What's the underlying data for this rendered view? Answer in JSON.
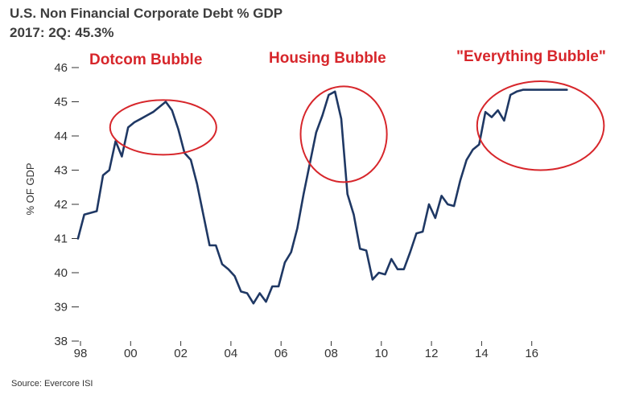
{
  "colors": {
    "line": "#1f3864",
    "annotation": "#d7262b",
    "axis": "#333333",
    "grid": "#bbbbbb"
  },
  "chart_data": {
    "type": "line",
    "title": "U.S. Non Financial Corporate Debt % GDP",
    "subtitle": "2017: 2Q: 45.3%",
    "xlabel": "",
    "ylabel": "% OF GDP",
    "source": "Source: Evercore ISI",
    "xlim": [
      1998,
      2018
    ],
    "ylim": [
      38,
      46
    ],
    "x_ticks": [
      1998,
      2000,
      2002,
      2004,
      2006,
      2008,
      2010,
      2012,
      2014,
      2016
    ],
    "x_tick_labels": [
      "98",
      "00",
      "02",
      "04",
      "06",
      "08",
      "10",
      "12",
      "14",
      "16"
    ],
    "y_ticks": [
      38,
      39,
      40,
      41,
      42,
      43,
      44,
      45,
      46
    ],
    "y_tick_labels": [
      "38",
      "39",
      "40",
      "41",
      "42",
      "43",
      "44",
      "45",
      "46"
    ],
    "series": [
      {
        "name": "U.S. Non Financial Corporate Debt % GDP",
        "x": [
          1997.9,
          1998.15,
          1998.4,
          1998.65,
          1998.9,
          1999.15,
          1999.4,
          1999.65,
          1999.9,
          2000.15,
          2000.4,
          2000.65,
          2000.9,
          2001.15,
          2001.4,
          2001.65,
          2001.9,
          2002.15,
          2002.4,
          2002.65,
          2002.9,
          2003.15,
          2003.4,
          2003.65,
          2003.9,
          2004.15,
          2004.4,
          2004.65,
          2004.9,
          2005.15,
          2005.4,
          2005.65,
          2005.9,
          2006.15,
          2006.4,
          2006.65,
          2006.9,
          2007.15,
          2007.4,
          2007.65,
          2007.9,
          2008.15,
          2008.4,
          2008.65,
          2008.9,
          2009.15,
          2009.4,
          2009.65,
          2009.9,
          2010.15,
          2010.4,
          2010.65,
          2010.9,
          2011.15,
          2011.4,
          2011.65,
          2011.9,
          2012.15,
          2012.4,
          2012.65,
          2012.9,
          2013.15,
          2013.4,
          2013.65,
          2013.9,
          2014.15,
          2014.4,
          2014.65,
          2014.9,
          2015.15,
          2015.4,
          2015.65,
          2015.9,
          2016.15,
          2016.4,
          2016.65,
          2016.9,
          2017.15,
          2017.4
        ],
        "values": [
          41.0,
          41.7,
          41.75,
          41.8,
          42.85,
          43.0,
          43.85,
          43.4,
          44.25,
          44.4,
          44.5,
          44.6,
          44.7,
          44.85,
          45.0,
          44.75,
          44.2,
          43.5,
          43.3,
          42.6,
          41.7,
          40.8,
          40.8,
          40.25,
          40.1,
          39.9,
          39.45,
          39.4,
          39.1,
          39.4,
          39.15,
          39.6,
          39.6,
          40.3,
          40.6,
          41.3,
          42.3,
          43.2,
          44.1,
          44.6,
          45.2,
          45.3,
          44.5,
          42.3,
          41.7,
          40.7,
          40.65,
          39.8,
          40.0,
          39.95,
          40.4,
          40.1,
          40.1,
          40.6,
          41.15,
          41.2,
          42.0,
          41.6,
          42.25,
          42.0,
          41.95,
          42.7,
          43.3,
          43.6,
          43.75,
          44.7,
          44.55,
          44.75,
          44.45,
          45.2,
          45.3,
          45.35,
          45.35,
          45.35,
          45.35,
          45.35,
          45.35,
          45.35,
          45.35
        ]
      }
    ],
    "annotations": [
      "Dotcom Bubble",
      "Housing Bubble",
      "\"Everything Bubble\""
    ],
    "highlight_circles": [
      {
        "label": "Dotcom Bubble",
        "center": [
          2001.3,
          44.25
        ],
        "rx_years": 2.12,
        "ry_units": 0.8
      },
      {
        "label": "Housing Bubble",
        "center": [
          2008.5,
          44.05
        ],
        "rx_years": 1.72,
        "ry_units": 1.4
      },
      {
        "label": "\"Everything Bubble\"",
        "center": [
          2016.35,
          44.3
        ],
        "rx_years": 2.53,
        "ry_units": 1.3
      }
    ]
  }
}
